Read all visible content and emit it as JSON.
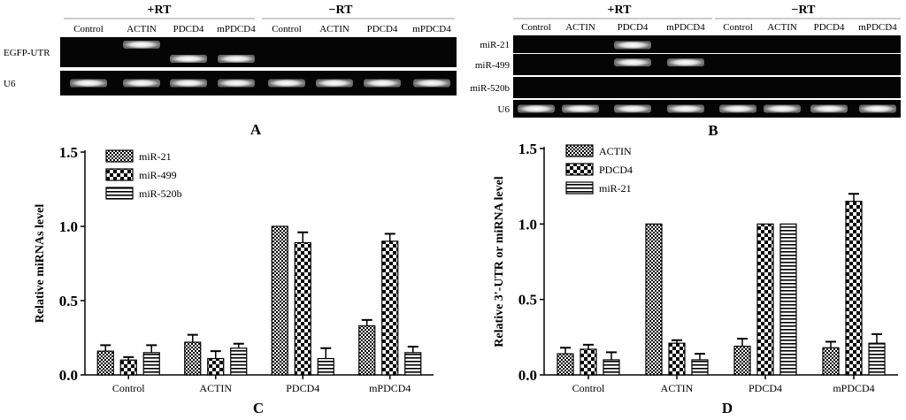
{
  "panel_a": {
    "letter": "A",
    "group_plus": "+RT",
    "group_minus": "−RT",
    "columns": [
      "Control",
      "ACTIN",
      "PDCD4",
      "mPDCD4",
      "Control",
      "ACTIN",
      "PDCD4",
      "mPDCD4"
    ],
    "rows": [
      {
        "label": "EGFP-UTR",
        "bands": [
          0,
          1,
          1,
          1,
          0,
          0,
          0,
          0
        ]
      },
      {
        "label": "U6",
        "bands": [
          1,
          1,
          1,
          1,
          1,
          1,
          1,
          1
        ]
      }
    ]
  },
  "panel_b": {
    "letter": "B",
    "group_plus": "+RT",
    "group_minus": "−RT",
    "columns": [
      "Control",
      "ACTIN",
      "PDCD4",
      "mPDCD4",
      "Control",
      "ACTIN",
      "PDCD4",
      "mPDCD4"
    ],
    "rows": [
      {
        "label": "miR-21",
        "bands": [
          0,
          0,
          1,
          0,
          0,
          0,
          0,
          0
        ]
      },
      {
        "label": "miR-499",
        "bands": [
          0,
          0,
          1,
          1,
          0,
          0,
          0,
          0
        ]
      },
      {
        "label": "miR-520b",
        "bands": [
          0,
          0,
          0,
          0,
          0,
          0,
          0,
          0
        ]
      },
      {
        "label": "U6",
        "bands": [
          1,
          1,
          1,
          1,
          1,
          1,
          1,
          1
        ]
      }
    ]
  },
  "chart_data": [
    {
      "panel": "C",
      "type": "bar",
      "ylabel": "Relative miRNAs level",
      "xlabel": "",
      "ylim": [
        0,
        1.5
      ],
      "yticks": [
        "0.0",
        "0.5",
        "1.0",
        "1.5"
      ],
      "categories": [
        "Control",
        "ACTIN",
        "PDCD4",
        "mPDCD4"
      ],
      "legend_position": "top-left",
      "series": [
        {
          "name": "miR-21",
          "pattern": "checker-fine",
          "values": [
            0.16,
            0.22,
            1.0,
            0.33
          ],
          "errors": [
            0.04,
            0.05,
            0.0,
            0.04
          ]
        },
        {
          "name": "miR-499",
          "pattern": "checker-coarse",
          "values": [
            0.1,
            0.11,
            0.89,
            0.9
          ],
          "errors": [
            0.02,
            0.05,
            0.07,
            0.05
          ]
        },
        {
          "name": "miR-520b",
          "pattern": "horizontal-stripes",
          "values": [
            0.15,
            0.18,
            0.11,
            0.15
          ],
          "errors": [
            0.05,
            0.03,
            0.07,
            0.04
          ]
        }
      ]
    },
    {
      "panel": "D",
      "type": "bar",
      "ylabel": "Relative 3'-UTR or miRNA level",
      "xlabel": "",
      "ylim": [
        0,
        1.5
      ],
      "yticks": [
        "0.0",
        "0.5",
        "1.0",
        "1.5"
      ],
      "categories": [
        "Control",
        "ACTIN",
        "PDCD4",
        "mPDCD4"
      ],
      "legend_position": "top-left",
      "series": [
        {
          "name": "ACTIN",
          "pattern": "checker-fine",
          "values": [
            0.14,
            1.0,
            0.19,
            0.18
          ],
          "errors": [
            0.04,
            0.0,
            0.05,
            0.04
          ]
        },
        {
          "name": "PDCD4",
          "pattern": "checker-coarse",
          "values": [
            0.17,
            0.21,
            1.0,
            1.15
          ],
          "errors": [
            0.03,
            0.02,
            0.0,
            0.05
          ]
        },
        {
          "name": "miR-21",
          "pattern": "horizontal-stripes",
          "values": [
            0.1,
            0.1,
            1.0,
            0.21
          ],
          "errors": [
            0.05,
            0.04,
            0.0,
            0.06
          ]
        }
      ]
    }
  ]
}
